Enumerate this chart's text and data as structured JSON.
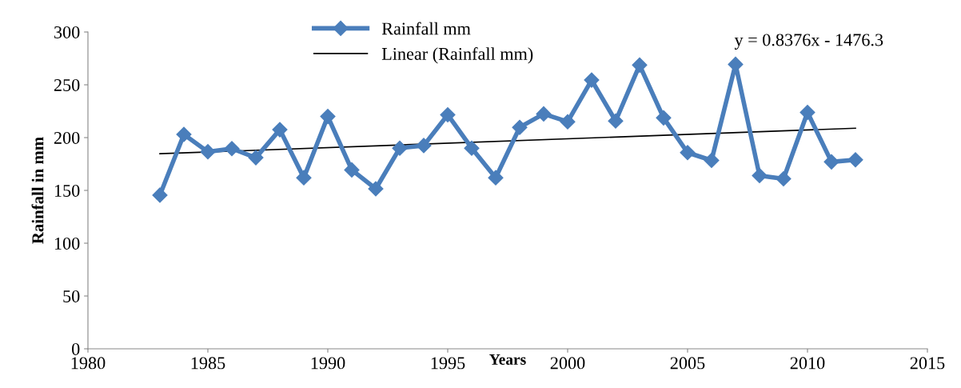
{
  "chart_data": {
    "type": "line",
    "xlabel": "Years",
    "ylabel": "Rainfall in mm",
    "x": [
      1983,
      1984,
      1985,
      1986,
      1987,
      1988,
      1989,
      1990,
      1991,
      1992,
      1993,
      1994,
      1995,
      1996,
      1997,
      1998,
      1999,
      2000,
      2001,
      2002,
      2003,
      2004,
      2005,
      2006,
      2007,
      2008,
      2009,
      2010,
      2011,
      2012
    ],
    "series": [
      {
        "name": "Rainfall mm",
        "color": "#4a7ebb",
        "marker": "diamond",
        "values": [
          145.5,
          203,
          186.6,
          189.6,
          181,
          207.5,
          162,
          220,
          169.4,
          151.5,
          190,
          192.5,
          221.6,
          190,
          162,
          209.7,
          222.4,
          215,
          254.5,
          215.7,
          268.7,
          218.7,
          185.8,
          178.4,
          269.4,
          164,
          161,
          223.9,
          177,
          179
        ]
      },
      {
        "name": "Linear (Rainfall mm)",
        "color": "#000000",
        "marker": "none",
        "x": [
          1983,
          2012
        ],
        "values": [
          184.7,
          208.9
        ]
      }
    ],
    "annotations": [
      "y = 0.8376x - 1476.3"
    ],
    "xlim": [
      1980,
      2015
    ],
    "xticks": [
      1980,
      1985,
      1990,
      1995,
      2000,
      2005,
      2010,
      2015
    ],
    "ylim": [
      0,
      300
    ],
    "yticks": [
      0,
      50,
      100,
      150,
      200,
      250,
      300
    ],
    "grid": false,
    "legend": "top"
  }
}
